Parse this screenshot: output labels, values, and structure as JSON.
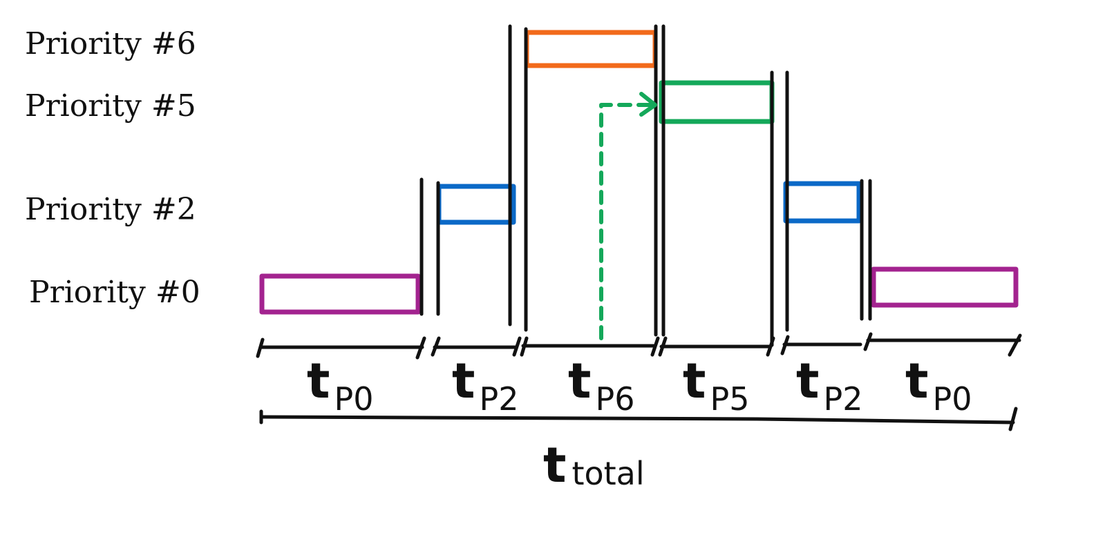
{
  "priority_labels": {
    "p6": "Priority #6",
    "p5": "Priority #5",
    "p2": "Priority #2",
    "p0": "Priority #0"
  },
  "segments": [
    {
      "main": "t",
      "sub": "P0"
    },
    {
      "main": "t",
      "sub": "P2"
    },
    {
      "main": "t",
      "sub": "P6"
    },
    {
      "main": "t",
      "sub": "P5"
    },
    {
      "main": "t",
      "sub": "P2"
    },
    {
      "main": "t",
      "sub": "P0"
    }
  ],
  "total": {
    "main": "t",
    "sub": "total"
  },
  "colors": {
    "p6": "#f26a1b",
    "p5": "#14a85a",
    "p2": "#0b69c7",
    "p0": "#a3238f",
    "ink": "#111111"
  }
}
